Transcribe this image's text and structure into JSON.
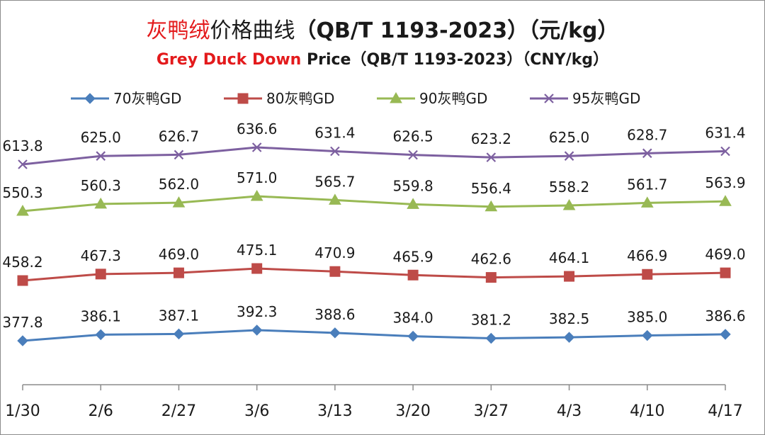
{
  "title": {
    "cn_accent": "灰鸭绒",
    "cn_rest": "价格曲线",
    "cn_spec": "（QB/T 1193-2023）",
    "cn_unit": "（元/kg）",
    "en_accent": "Grey Duck Down",
    "en_rest": " Price（QB/T 1193-2023）（CNY/kg）"
  },
  "chart_data": {
    "type": "line",
    "x": [
      "1/30",
      "2/6",
      "2/27",
      "3/6",
      "3/13",
      "3/20",
      "3/27",
      "4/3",
      "4/10",
      "4/17"
    ],
    "series": [
      {
        "name": "70灰鸭GD",
        "color": "#4a7ebb",
        "marker": "diamond",
        "values": [
          377.8,
          386.1,
          387.1,
          392.3,
          388.6,
          384.0,
          381.2,
          382.5,
          385.0,
          386.6
        ],
        "labels": [
          "377.8",
          "386.1",
          "387.1",
          "392.3",
          "388.6",
          "384.0",
          "381.2",
          "382.5",
          "385.0",
          "386.6"
        ]
      },
      {
        "name": "80灰鸭GD",
        "color": "#be4b48",
        "marker": "square",
        "values": [
          458.2,
          467.3,
          469.0,
          475.1,
          470.9,
          465.9,
          462.6,
          464.1,
          466.9,
          469.0
        ],
        "labels": [
          "458.2",
          "467.3",
          "469.0",
          "475.1",
          "470.9",
          "465.9",
          "462.6",
          "464.1",
          "466.9",
          "469.0"
        ]
      },
      {
        "name": "90灰鸭GD",
        "color": "#98b954",
        "marker": "triangle",
        "values": [
          550.3,
          560.3,
          562.0,
          571.0,
          565.7,
          559.8,
          556.4,
          558.2,
          561.7,
          563.9
        ],
        "labels": [
          "550.3",
          "560.3",
          "562.0",
          "571.0",
          "565.7",
          "559.8",
          "556.4",
          "558.2",
          "561.7",
          "563.9"
        ]
      },
      {
        "name": "95灰鸭GD",
        "color": "#7d60a0",
        "marker": "x",
        "values": [
          613.8,
          625.0,
          626.7,
          636.6,
          631.4,
          626.5,
          623.2,
          625.0,
          628.7,
          631.4
        ],
        "labels": [
          "613.8",
          "625.0",
          "626.7",
          "636.6",
          "631.4",
          "626.5",
          "623.2",
          "625.0",
          "628.7",
          "631.4"
        ]
      }
    ],
    "legend_position": "top",
    "grid": false,
    "y_axis_visible": false
  }
}
